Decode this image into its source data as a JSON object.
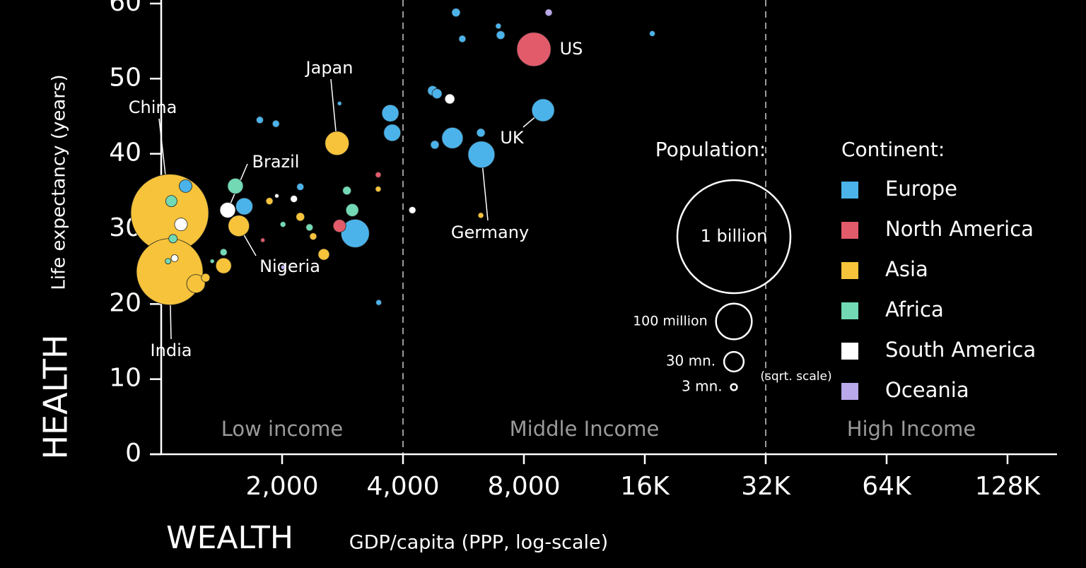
{
  "chart_data": {
    "type": "bubble",
    "x_label_main": "WEALTH",
    "x_label": "GDP/capita (PPP, log-scale)",
    "y_label_main": "HEALTH",
    "y_label": "Life expectancy (years)",
    "xscale": "log",
    "xlim": [
      1000,
      170000
    ],
    "ylim": [
      0,
      60
    ],
    "xticks": [
      {
        "value": 2000,
        "label": "2,000"
      },
      {
        "value": 4000,
        "label": "4,000"
      },
      {
        "value": 8000,
        "label": "8,000"
      },
      {
        "value": 16000,
        "label": "16K"
      },
      {
        "value": 32000,
        "label": "32K"
      },
      {
        "value": 64000,
        "label": "64K"
      },
      {
        "value": 128000,
        "label": "128K"
      }
    ],
    "yticks": [
      0,
      10,
      20,
      30,
      40,
      50,
      60
    ],
    "xlines": [
      4000,
      32000
    ],
    "region_labels": [
      "Low income",
      "Middle Income",
      "High Income"
    ],
    "size_legend": {
      "title": "Population:",
      "note": "(sqrt. scale)",
      "items": [
        {
          "value": 1000,
          "label": "1 billion"
        },
        {
          "value": 100,
          "label": "100 million"
        },
        {
          "value": 30,
          "label": "30 mn."
        },
        {
          "value": 3,
          "label": "3 mn."
        }
      ]
    },
    "legend_title": "Continent:",
    "series": [
      {
        "name": "Europe",
        "color": "#4cb3ea",
        "points": [
          {
            "x": 5420,
            "y": 58.8,
            "size": 5.6
          },
          {
            "x": 5620,
            "y": 55.3,
            "size": 3.9
          },
          {
            "x": 6910,
            "y": 57.0,
            "size": 2.5
          },
          {
            "x": 7000,
            "y": 55.8,
            "size": 5.6
          },
          {
            "x": 16700,
            "y": 56.0,
            "size": 2.5
          },
          {
            "x": 4740,
            "y": 48.4,
            "size": 7.7
          },
          {
            "x": 4860,
            "y": 48.0,
            "size": 7.7
          },
          {
            "x": 3720,
            "y": 45.4,
            "size": 22.5
          },
          {
            "x": 3760,
            "y": 42.8,
            "size": 22.5
          },
          {
            "x": 5310,
            "y": 42.1,
            "size": 35
          },
          {
            "x": 6250,
            "y": 42.8,
            "size": 5.6
          },
          {
            "x": 4800,
            "y": 41.2,
            "size": 5.6
          },
          {
            "x": 3040,
            "y": 29.4,
            "size": 62.5
          },
          {
            "x": 1610,
            "y": 33.0,
            "size": 22.5
          },
          {
            "x": 1150,
            "y": 35.7,
            "size": 12.7
          },
          {
            "x": 1760,
            "y": 44.5,
            "size": 3.9
          },
          {
            "x": 1930,
            "y": 44.0,
            "size": 3.9
          },
          {
            "x": 2220,
            "y": 35.6,
            "size": 3.9
          },
          {
            "x": 3480,
            "y": 20.2,
            "size": 2.5
          },
          {
            "x": 2780,
            "y": 46.7,
            "size": 1.4
          },
          {
            "x": 8930,
            "y": 45.8,
            "size": 40,
            "label": "UK"
          },
          {
            "x": 6270,
            "y": 39.9,
            "size": 56,
            "label": "Germany"
          }
        ]
      },
      {
        "name": "North America",
        "color": "#e25b6b",
        "points": [
          {
            "x": 8470,
            "y": 53.9,
            "size": 90,
            "label": "US"
          },
          {
            "x": 2780,
            "y": 30.4,
            "size": 12.7
          },
          {
            "x": 3470,
            "y": 37.2,
            "size": 2.5
          },
          {
            "x": 1790,
            "y": 28.5,
            "size": 1.4
          }
        ]
      },
      {
        "name": "Asia",
        "color": "#f6c33b",
        "points": [
          {
            "x": 1050,
            "y": 32.1,
            "size": 473,
            "label": "China"
          },
          {
            "x": 1050,
            "y": 24.3,
            "size": 345,
            "label": "India"
          },
          {
            "x": 2740,
            "y": 41.4,
            "size": 45,
            "label": "Japan"
          },
          {
            "x": 1430,
            "y": 25.1,
            "size": 18.9
          },
          {
            "x": 1220,
            "y": 22.7,
            "size": 26.4
          },
          {
            "x": 1560,
            "y": 30.4,
            "size": 35,
            "label": "Nigeria"
          },
          {
            "x": 2540,
            "y": 26.6,
            "size": 10
          },
          {
            "x": 2220,
            "y": 31.6,
            "size": 5.6
          },
          {
            "x": 1860,
            "y": 33.7,
            "size": 3.9
          },
          {
            "x": 6250,
            "y": 31.8,
            "size": 2.5
          },
          {
            "x": 3470,
            "y": 35.3,
            "size": 2.5
          },
          {
            "x": 2390,
            "y": 29.0,
            "size": 3.9
          },
          {
            "x": 1290,
            "y": 23.5,
            "size": 5.6
          }
        ]
      },
      {
        "name": "Africa",
        "color": "#72d9b4",
        "points": [
          {
            "x": 1530,
            "y": 35.7,
            "size": 18.9
          },
          {
            "x": 2990,
            "y": 32.5,
            "size": 12.7
          },
          {
            "x": 2900,
            "y": 35.1,
            "size": 5.6
          },
          {
            "x": 2340,
            "y": 30.2,
            "size": 3.9
          },
          {
            "x": 2010,
            "y": 30.6,
            "size": 2.5
          },
          {
            "x": 1430,
            "y": 26.9,
            "size": 3.9
          },
          {
            "x": 1060,
            "y": 33.7,
            "size": 10
          },
          {
            "x": 1070,
            "y": 28.7,
            "size": 5.6
          },
          {
            "x": 1340,
            "y": 25.7,
            "size": 1.4
          },
          {
            "x": 1040,
            "y": 25.7,
            "size": 2.5
          }
        ]
      },
      {
        "name": "South America",
        "color": "#ffffff",
        "points": [
          {
            "x": 1464,
            "y": 32.5,
            "size": 18.9,
            "label": "Brazil"
          },
          {
            "x": 5230,
            "y": 47.3,
            "size": 7.7
          },
          {
            "x": 4220,
            "y": 32.5,
            "size": 3.9
          },
          {
            "x": 1120,
            "y": 30.6,
            "size": 12.7
          },
          {
            "x": 2140,
            "y": 34.0,
            "size": 3.9
          },
          {
            "x": 1080,
            "y": 26.1,
            "size": 3.9
          },
          {
            "x": 1940,
            "y": 34.4,
            "size": 1.4
          }
        ]
      },
      {
        "name": "Oceania",
        "color": "#b9a8ea",
        "points": [
          {
            "x": 9220,
            "y": 58.8,
            "size": 3.9
          },
          {
            "x": 2010,
            "y": 24.9,
            "size": 1.4
          }
        ]
      }
    ]
  }
}
